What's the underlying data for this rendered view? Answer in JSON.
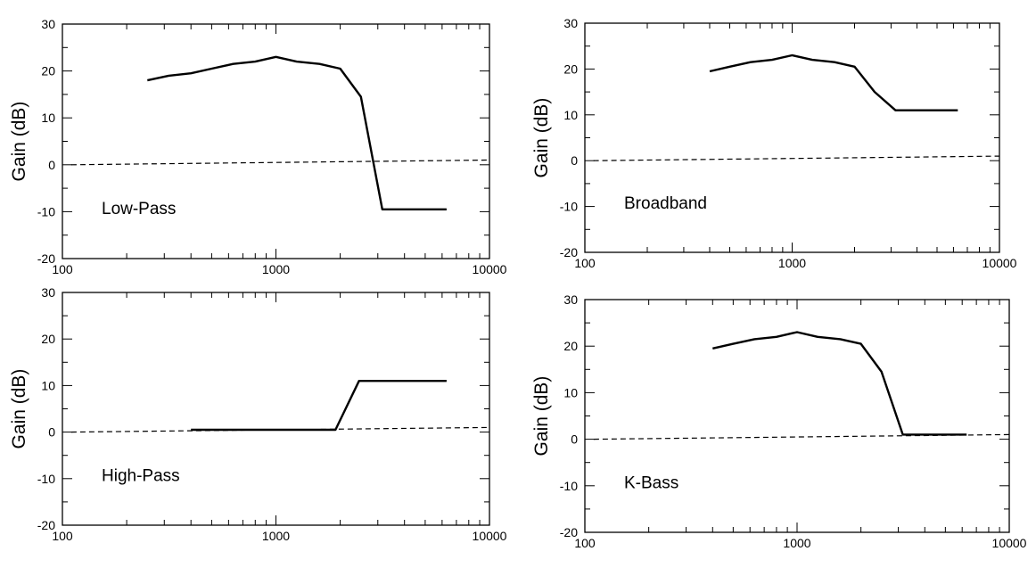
{
  "chart_data": [
    {
      "type": "line",
      "panel_label": "Low-Pass",
      "ylabel": "Gain (dB)",
      "xscale": "log",
      "xlim": [
        100,
        10000
      ],
      "ylim": [
        -20,
        30
      ],
      "x_ticks": [
        "100",
        "1000",
        "10000"
      ],
      "y_ticks": [
        "30",
        "20",
        "10",
        "0",
        "-10",
        "-20"
      ],
      "series": [
        {
          "style": "solid",
          "x": [
            250,
            315,
            400,
            500,
            630,
            800,
            1000,
            1250,
            1600,
            2000,
            2500,
            3150,
            6300
          ],
          "y": [
            18,
            19,
            19.5,
            20.5,
            21.5,
            22,
            23,
            22,
            21.5,
            20.5,
            14.5,
            -9.5,
            -9.5
          ]
        },
        {
          "style": "dashed",
          "x": [
            110,
            10000
          ],
          "y": [
            0,
            1
          ]
        }
      ]
    },
    {
      "type": "line",
      "panel_label": "Broadband",
      "ylabel": "Gain (dB)",
      "xscale": "log",
      "xlim": [
        100,
        10000
      ],
      "ylim": [
        -20,
        30
      ],
      "x_ticks": [
        "100",
        "1000",
        "10000"
      ],
      "y_ticks": [
        "30",
        "20",
        "10",
        "0",
        "-10",
        "-20"
      ],
      "series": [
        {
          "style": "solid",
          "x": [
            400,
            500,
            630,
            800,
            1000,
            1250,
            1600,
            2000,
            2500,
            3150,
            6300
          ],
          "y": [
            19.5,
            20.5,
            21.5,
            22,
            23,
            22,
            21.5,
            20.5,
            15,
            11,
            11
          ]
        },
        {
          "style": "dashed",
          "x": [
            110,
            10000
          ],
          "y": [
            0,
            1
          ]
        }
      ]
    },
    {
      "type": "line",
      "panel_label": "High-Pass",
      "ylabel": "Gain (dB)",
      "xscale": "log",
      "xlim": [
        100,
        10000
      ],
      "ylim": [
        -20,
        30
      ],
      "x_ticks": [
        "100",
        "1000",
        "10000"
      ],
      "y_ticks": [
        "30",
        "20",
        "10",
        "0",
        "-10",
        "-20"
      ],
      "series": [
        {
          "style": "solid",
          "x": [
            400,
            1000,
            1900,
            2450,
            6300
          ],
          "y": [
            0.5,
            0.5,
            0.5,
            11,
            11
          ]
        },
        {
          "style": "dashed",
          "x": [
            110,
            10000
          ],
          "y": [
            0,
            1
          ]
        }
      ]
    },
    {
      "type": "line",
      "panel_label": "K-Bass",
      "ylabel": "Gain (dB)",
      "xscale": "log",
      "xlim": [
        100,
        10000
      ],
      "ylim": [
        -20,
        30
      ],
      "x_ticks": [
        "100",
        "1000",
        "10000"
      ],
      "y_ticks": [
        "30",
        "20",
        "10",
        "0",
        "-10",
        "-20"
      ],
      "series": [
        {
          "style": "solid",
          "x": [
            400,
            500,
            630,
            800,
            1000,
            1250,
            1600,
            2000,
            2500,
            3150,
            6300
          ],
          "y": [
            19.5,
            20.5,
            21.5,
            22,
            23,
            22,
            21.5,
            20.5,
            14.5,
            1,
            1
          ]
        },
        {
          "style": "dashed",
          "x": [
            110,
            10000
          ],
          "y": [
            0,
            1
          ]
        }
      ]
    }
  ]
}
